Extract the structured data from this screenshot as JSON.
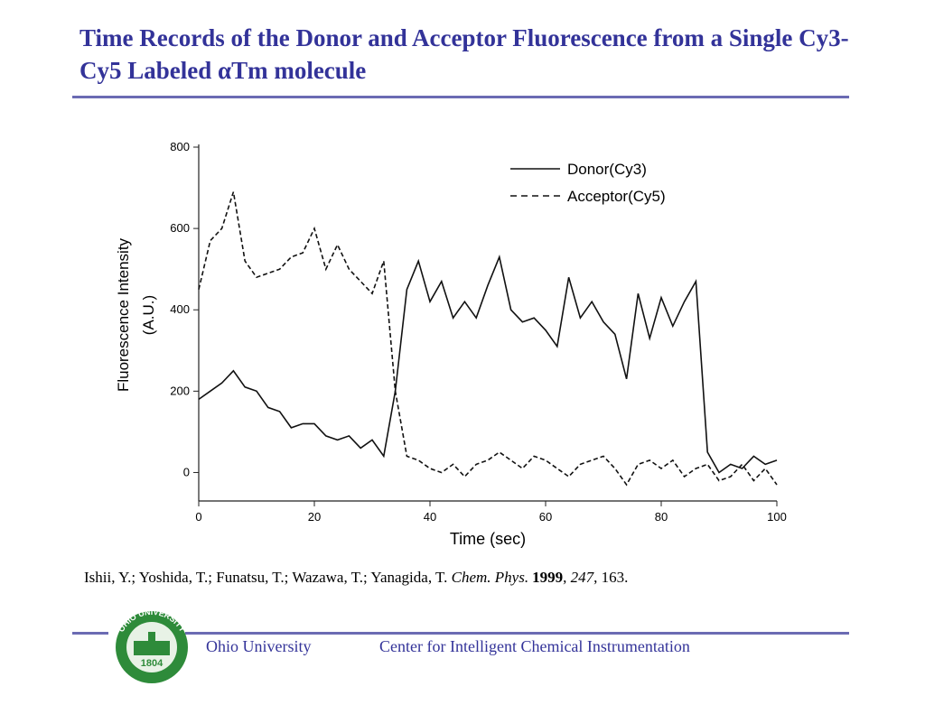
{
  "header": {
    "title": "Time Records of the Donor and Acceptor Fluorescence from a Single Cy3-Cy5 Labeled αTm molecule"
  },
  "chart_data": {
    "type": "line",
    "xlabel": "Time (sec)",
    "ylabel": [
      "Fluorescence Intensity",
      "(A.U.)"
    ],
    "x": [
      0,
      2,
      4,
      6,
      8,
      10,
      12,
      14,
      16,
      18,
      20,
      22,
      24,
      26,
      28,
      30,
      32,
      34,
      36,
      38,
      40,
      42,
      44,
      46,
      48,
      50,
      52,
      54,
      56,
      58,
      60,
      62,
      64,
      66,
      68,
      70,
      72,
      74,
      76,
      78,
      80,
      82,
      84,
      86,
      88,
      90,
      92,
      94,
      96,
      98,
      100
    ],
    "series": [
      {
        "name": "Donor(Cy3)",
        "color": "#111111",
        "linestyle": "solid",
        "values": [
          180,
          200,
          220,
          250,
          210,
          200,
          160,
          150,
          110,
          120,
          120,
          90,
          80,
          90,
          60,
          80,
          40,
          200,
          450,
          520,
          420,
          470,
          380,
          420,
          380,
          460,
          530,
          400,
          370,
          380,
          350,
          310,
          480,
          380,
          420,
          370,
          340,
          230,
          440,
          330,
          430,
          360,
          420,
          470,
          50,
          0,
          20,
          10,
          40,
          20,
          30
        ]
      },
      {
        "name": "Acceptor(Cy5)",
        "color": "#111111",
        "linestyle": "dashed",
        "values": [
          450,
          570,
          600,
          690,
          520,
          480,
          490,
          500,
          530,
          540,
          600,
          500,
          560,
          500,
          470,
          440,
          520,
          200,
          40,
          30,
          10,
          0,
          20,
          -10,
          20,
          30,
          50,
          30,
          10,
          40,
          30,
          10,
          -10,
          20,
          30,
          40,
          10,
          -30,
          20,
          30,
          10,
          30,
          -10,
          10,
          20,
          -20,
          -10,
          20,
          -20,
          10,
          -30
        ]
      }
    ],
    "xlim": [
      0,
      100
    ],
    "xticks": [
      0,
      20,
      40,
      60,
      80,
      100
    ],
    "ylim": [
      -70,
      800
    ],
    "yticks": [
      0,
      200,
      400,
      600,
      800
    ],
    "legend": "upper right"
  },
  "citation": [
    {
      "text": "Ishii, Y.; Yoshida, T.; Funatsu, T.; Wazawa, T.; Yanagida, T. "
    },
    {
      "text": "Chem. Phys.",
      "style": "italic"
    },
    {
      "text": "1999",
      "style": "bold"
    },
    {
      "text": ", "
    },
    {
      "text": "247",
      "style": "italic"
    },
    {
      "text": ", 163."
    }
  ],
  "logo": {
    "text": "OHIO UNIVERSITY",
    "year": "1804"
  },
  "footer": {
    "left": "Ohio University",
    "right": "Center for Intelligent Chemical Instrumentation"
  }
}
